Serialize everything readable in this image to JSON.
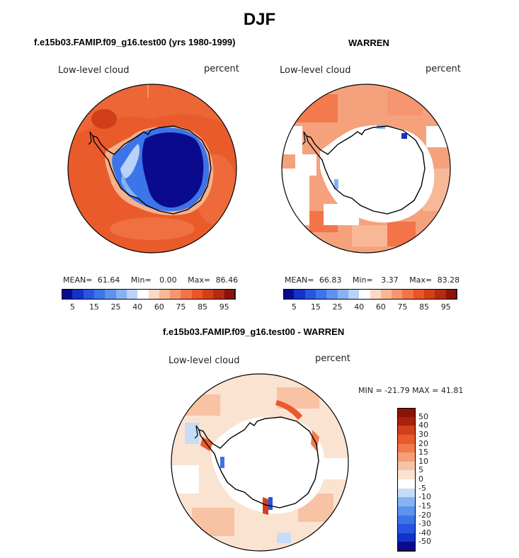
{
  "figure": {
    "title": "DJF"
  },
  "panels": {
    "model": {
      "title": "f.e15b03.FAMIP.f09_g16.test00 (yrs 1980-1999)",
      "variable": "Low-level cloud",
      "units": "percent",
      "mean_label": "MEAN=",
      "mean": "61.64",
      "min_label": "Min=",
      "min": "0.00",
      "max_label": "Max=",
      "max": "86.46"
    },
    "obs": {
      "title": "WARREN",
      "variable": "Low-level cloud",
      "units": "percent",
      "mean_label": "MEAN=",
      "mean": "66.83",
      "min_label": "Min=",
      "min": "3.37",
      "max_label": "Max=",
      "max": "83.28"
    },
    "diff": {
      "title": "f.e15b03.FAMIP.f09_g16.test00 - WARREN",
      "variable": "Low-level cloud",
      "units": "percent",
      "minmax_text": "MIN = -21.79 MAX =  41.81"
    }
  },
  "colorbars": {
    "abs": {
      "colors": [
        "#0a0a8c",
        "#1432c8",
        "#2855e0",
        "#3c74ea",
        "#5d92ef",
        "#86b2f3",
        "#b8d3f7",
        "#ffffff",
        "#fbd9c5",
        "#f8b898",
        "#f59670",
        "#f27448",
        "#ea5428",
        "#d2401a",
        "#b42a12",
        "#8a140a"
      ],
      "labels": [
        "5",
        "15",
        "25",
        "40",
        "60",
        "75",
        "85",
        "95"
      ]
    },
    "diff": {
      "colors": [
        "#0a0a8c",
        "#1432c8",
        "#2855e0",
        "#3c74ea",
        "#5d92ef",
        "#86b2f3",
        "#c6dcf8",
        "#ffffff",
        "#fbe3d2",
        "#f8c2a4",
        "#f59f78",
        "#f27a4c",
        "#ea5a2c",
        "#d2401a",
        "#a8200e",
        "#8a140a"
      ],
      "labels": [
        "-50",
        "-40",
        "-30",
        "-20",
        "-15",
        "-10",
        "-5",
        "0",
        "5",
        "10",
        "15",
        "20",
        "30",
        "40",
        "50"
      ]
    }
  }
}
